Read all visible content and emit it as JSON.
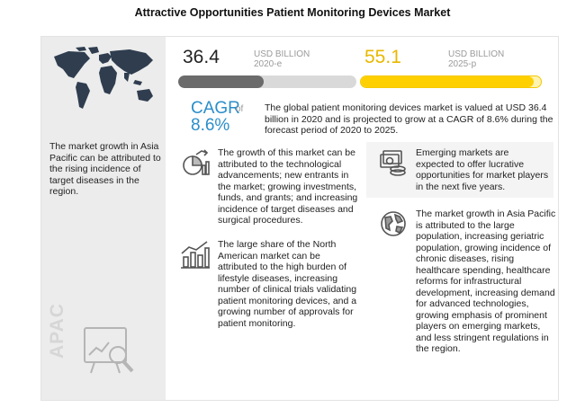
{
  "title": "Attractive Opportunities Patient Monitoring Devices Market",
  "region": {
    "label": "APAC",
    "text": "The market growth in Asia Pacific can be attributed to the rising incidence of target diseases in the region."
  },
  "market_2020": {
    "value": "36.4",
    "unit": "USD BILLION",
    "year": "2020-e",
    "fraction": 0.48,
    "color": "#6b6b6b"
  },
  "market_2025": {
    "value": "55.1",
    "unit": "USD BILLION",
    "year": "2025-p",
    "fraction": 0.96,
    "color": "#ffd000"
  },
  "cagr": {
    "label": "CAGR",
    "of": "of",
    "value": "8.6%",
    "color": "#2b8ec9"
  },
  "summary": "The global patient monitoring devices market is valued at USD 36.4 billion in 2020 and is projected to grow at a CAGR of 8.6% during the forecast period of 2020 to 2025.",
  "insights": {
    "growth": "The growth of this market can be attributed to the technological advancements; new entrants in the market; growing investments, funds, and grants; and increasing incidence of target diseases and surgical procedures.",
    "north_america": "The large share of the North American market can be attributed to the high burden of lifestyle diseases, increasing number of clinical trials validating patient monitoring devices, and a growing number of approvals for patient monitoring.",
    "emerging": "Emerging markets are expected to offer lucrative opportunities for market players in the next five years.",
    "asia_pacific": "The market growth in Asia Pacific is attributed to the large population, increasing geriatric population, growing incidence of chronic diseases, rising healthcare spending, healthcare reforms for infrastructural development, increasing demand for advanced technologies, growing emphasis of prominent players on emerging markets, and less stringent regulations in the region."
  },
  "icons": {
    "map": "world-map-icon",
    "analysis": "magnifier-chart-icon",
    "growth": "growth-chart-icon",
    "north_america": "bar-chart-icon",
    "emerging": "money-icon",
    "asia_pacific": "globe-icon"
  }
}
